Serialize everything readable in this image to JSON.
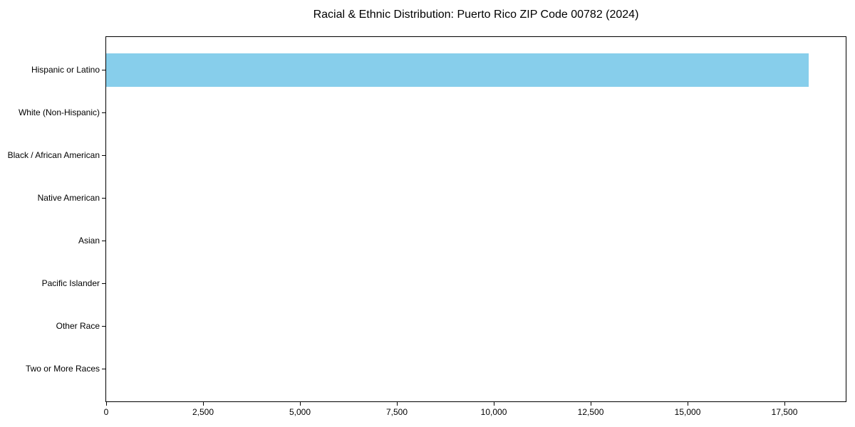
{
  "chart_data": {
    "type": "bar",
    "orientation": "horizontal",
    "title": "Racial & Ethnic Distribution: Puerto Rico ZIP Code 00782 (2024)",
    "categories": [
      "Hispanic or Latino",
      "White (Non-Hispanic)",
      "Black / African American",
      "Native American",
      "Asian",
      "Pacific Islander",
      "Other Race",
      "Two or More Races"
    ],
    "values": [
      18125,
      0,
      0,
      0,
      0,
      0,
      0,
      0
    ],
    "xlabel": "",
    "ylabel": "",
    "xlim": [
      0,
      19080
    ],
    "x_ticks": [
      0,
      2500,
      5000,
      7500,
      10000,
      12500,
      15000,
      17500
    ],
    "x_tick_labels": [
      "0",
      "2,500",
      "5,000",
      "7,500",
      "10,000",
      "12,500",
      "15,000",
      "17,500"
    ],
    "bar_color": "#87CEEB",
    "background_color": "#FFFFFF",
    "text_color": "#000000",
    "grid": false,
    "legend": null
  }
}
